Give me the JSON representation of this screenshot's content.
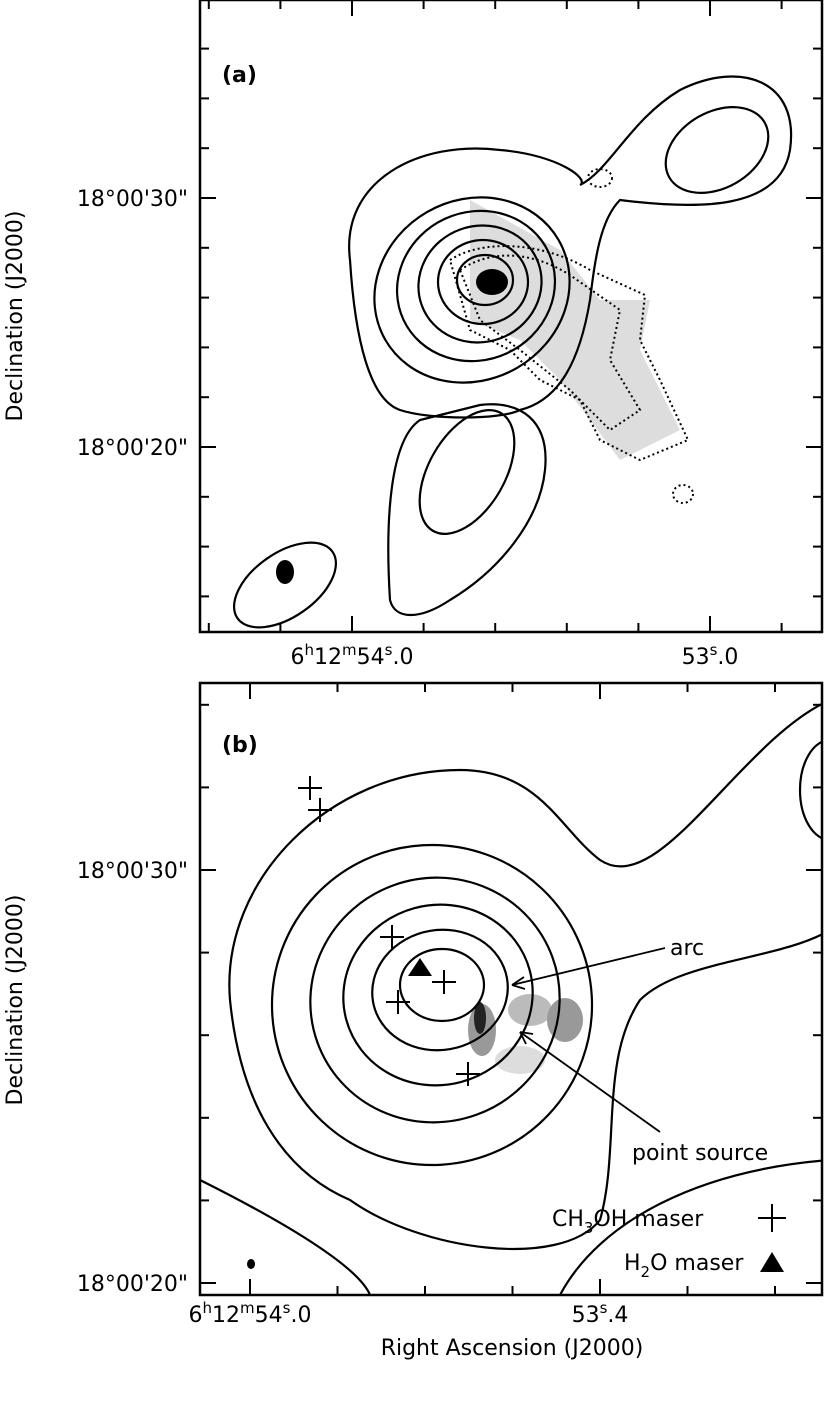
{
  "panel_a": {
    "label": "(a)",
    "y_axis_title": "Declination (J2000)",
    "yticks": [
      "18°00'30\"",
      "18°00'20\""
    ],
    "xticks": [
      [
        "6",
        "h",
        "12",
        "m",
        "54",
        "s",
        ".0"
      ],
      [
        "53",
        "s",
        ".0"
      ]
    ]
  },
  "panel_b": {
    "label": "(b)",
    "y_axis_title": "Declination (J2000)",
    "yticks": [
      "18°00'30\"",
      "18°00'20\""
    ],
    "xticks": [
      [
        "6",
        "h",
        "12",
        "m",
        "54",
        "s",
        ".0"
      ],
      [
        "53",
        "s",
        ".4"
      ]
    ],
    "x_axis_title": "Right Ascension (J2000)",
    "annotations": {
      "arc": "arc",
      "point_source": "point source"
    },
    "legend": {
      "ch3oh": [
        "CH",
        "3",
        "OH maser"
      ],
      "h2o": [
        "H",
        "2",
        "O maser"
      ]
    }
  }
}
